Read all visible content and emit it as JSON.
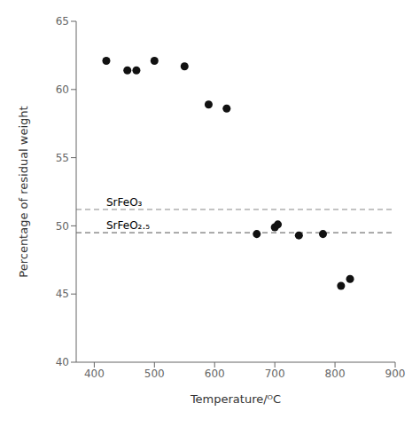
{
  "chart_data": {
    "type": "scatter",
    "x_label": "Temperature/ᴼC",
    "y_label": "Percentage of residual weight",
    "x": [
      420,
      455,
      470,
      500,
      550,
      590,
      620,
      670,
      700,
      705,
      740,
      780,
      810,
      825
    ],
    "values": [
      62.1,
      61.4,
      61.4,
      62.1,
      61.7,
      58.9,
      58.6,
      49.4,
      49.9,
      50.1,
      49.3,
      49.4,
      45.6,
      46.1
    ],
    "color": "#111111",
    "marker": "circle",
    "xlim": [
      370,
      900
    ],
    "ylim": [
      40,
      65
    ],
    "xticks": [
      400,
      500,
      600,
      700,
      800,
      900
    ],
    "yticks": [
      40,
      45,
      50,
      55,
      60,
      65
    ],
    "grid": false,
    "hlines": [
      {
        "y": 51.2,
        "color": "#888888",
        "line_style": "dashed",
        "label": "SrFeO₃",
        "label_x": 420
      },
      {
        "y": 49.5,
        "color": "#555555",
        "line_style": "dashed",
        "label": "SrFeO₂.₅",
        "label_x": 420
      }
    ]
  }
}
